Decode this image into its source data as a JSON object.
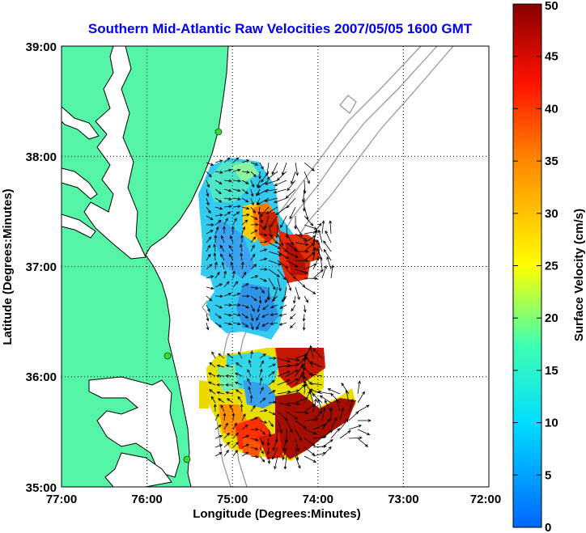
{
  "title": "Southern Mid-Atlantic Raw Velocities 2007/05/05 1600 GMT",
  "x_axis": {
    "label": "Longitude (Degrees:Minutes)",
    "range": [
      -77,
      -72
    ],
    "ticks": [
      {
        "value": -77,
        "label": "77:00"
      },
      {
        "value": -76,
        "label": "76:00"
      },
      {
        "value": -75,
        "label": "75:00"
      },
      {
        "value": -74,
        "label": "74:00"
      },
      {
        "value": -73,
        "label": "73:00"
      },
      {
        "value": -72,
        "label": "72:00"
      }
    ]
  },
  "y_axis": {
    "label": "Latitude (Degrees:Minutes)",
    "range": [
      35,
      39
    ],
    "ticks": [
      {
        "value": 35,
        "label": "35:00"
      },
      {
        "value": 36,
        "label": "36:00"
      },
      {
        "value": 37,
        "label": "37:00"
      },
      {
        "value": 38,
        "label": "38:00"
      },
      {
        "value": 39,
        "label": "39:00"
      }
    ]
  },
  "colorbar": {
    "label": "Surface Velocity (cm/s)",
    "range": [
      0,
      50
    ],
    "ticks": [
      {
        "value": 0,
        "label": "0"
      },
      {
        "value": 5,
        "label": "5"
      },
      {
        "value": 10,
        "label": "10"
      },
      {
        "value": 15,
        "label": "15"
      },
      {
        "value": 20,
        "label": "20"
      },
      {
        "value": 25,
        "label": "25"
      },
      {
        "value": 30,
        "label": "30"
      },
      {
        "value": 35,
        "label": "35"
      },
      {
        "value": 40,
        "label": "40"
      },
      {
        "value": 45,
        "label": "45"
      },
      {
        "value": 50,
        "label": "50"
      }
    ]
  },
  "colors": {
    "land": "#55f5a8",
    "water": "#ffffff",
    "coastline": "#000000",
    "bathymetry": "#999999",
    "grid": "#000000",
    "arrows": "#000000",
    "station": "#33dd33",
    "title": "#0000ee"
  },
  "grid": true,
  "stations": [
    {
      "lon": -75.15,
      "lat": 38.26
    },
    {
      "lon": -75.25,
      "lat": 38.26
    }
  ],
  "velocity_regions": [
    {
      "lon": -74.8,
      "lat": 37.2,
      "speed": 45
    },
    {
      "lon": -74.75,
      "lat": 35.5,
      "speed": 45
    }
  ]
}
